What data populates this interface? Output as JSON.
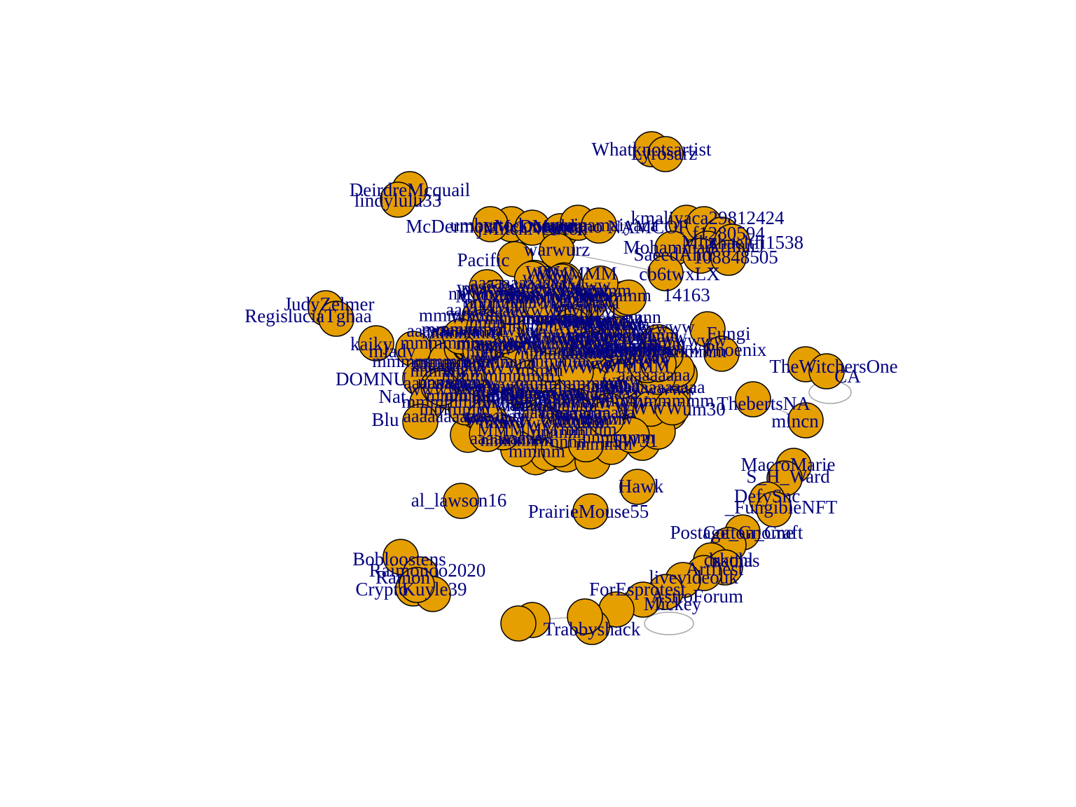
{
  "graph": {
    "node_color": "#E69F00",
    "node_border": "#000000",
    "label_color": "#000080",
    "edge_color": "#A6A6A6",
    "legible_labels": [
      "Whatknotsartist",
      "Lyrosarz",
      "DeirdreMcquail",
      "lindylulu33",
      "umbertodoneganp",
      "McDermottMcDonald",
      "jMitchNewton",
      "Mancano",
      "nanicamaiyaca",
      "kmaliyaca29812424",
      "NAMCOF",
      "f1280594",
      "Mohammad",
      "ArthurJ",
      "Mlichaeltfi1538",
      "SaeedAhd",
      "108848505",
      "Pacific",
      "warwurz",
      "cb6twxLX",
      "14163",
      "peac4",
      "JudyZelmer",
      "RegisluciaTghaa",
      "kaiky",
      "mlady",
      "Fungi",
      "Phoenix",
      "TheWitchersOne",
      "CA",
      "ThebertsNA",
      "mlncn",
      "DOMNU",
      "Nat",
      "Blu",
      "um30",
      "15W31",
      "al_lawson16",
      "PrairieMouse55",
      "Hawk",
      "MacroMarie",
      "S_H_Ward",
      "DefySnc",
      "_FungibleNFT",
      "Postage_Gnome",
      "Cotton_Craft",
      "drkohl",
      "nathas",
      "Artfiest",
      "livevideouk",
      "ForEsprotest",
      "AstroForum",
      "Mickey",
      "Trabbyshack",
      "Bobloostens",
      "Raimondo2020",
      "Ramon",
      "Crypto",
      "Kuyle39"
    ]
  }
}
